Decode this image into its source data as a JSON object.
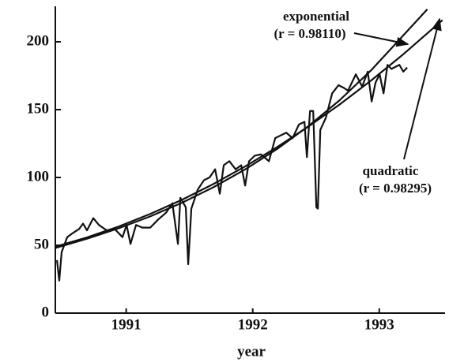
{
  "chart_data": {
    "type": "line",
    "xlabel": "year",
    "xlim": [
      1990.94,
      1994.02
    ],
    "ylim": [
      0,
      225
    ],
    "xticks": [
      {
        "value": 1991.5,
        "label": "1991"
      },
      {
        "value": 1992.5,
        "label": "1992"
      },
      {
        "value": 1993.5,
        "label": "1993"
      }
    ],
    "yticks": [
      0,
      50,
      100,
      150,
      200
    ],
    "color": "#111111",
    "series": [
      {
        "x": [
          1990.953,
          1990.971,
          1990.99,
          1991.034,
          1991.078,
          1991.128,
          1991.159,
          1991.19,
          1991.24,
          1991.284,
          1991.346,
          1991.409,
          1991.471,
          1991.503,
          1991.534,
          1991.578,
          1991.628,
          1991.69,
          1991.753,
          1991.815,
          1991.865,
          1991.909,
          1991.928,
          1991.971,
          1991.99,
          1992.015,
          1992.065,
          1992.115,
          1992.159,
          1992.203,
          1992.24,
          1992.271,
          1992.315,
          1992.365,
          1992.409,
          1992.44,
          1992.471,
          1992.515,
          1992.565,
          1992.628,
          1992.678,
          1992.721,
          1992.765,
          1992.815,
          1992.865,
          1992.909,
          1992.928,
          1992.953,
          1992.978,
          1993.003,
          1993.015,
          1993.034,
          1993.078,
          1993.128,
          1993.178,
          1993.221,
          1993.253,
          1993.315,
          1993.365,
          1993.409,
          1993.44,
          1993.471,
          1993.503,
          1993.534,
          1993.565,
          1993.596,
          1993.659,
          1993.69,
          1993.721
        ],
        "values": [
          39,
          24,
          45,
          56,
          59,
          62,
          66,
          61,
          70,
          65,
          61,
          62,
          56,
          65,
          51,
          65,
          63,
          63,
          69,
          74,
          81,
          51,
          85,
          78,
          36,
          77,
          91,
          98,
          100,
          106,
          88,
          109,
          112,
          106,
          109,
          94,
          112,
          116,
          117,
          112,
          129,
          131,
          133,
          129,
          139,
          141,
          115,
          149,
          149,
          78,
          77,
          135,
          144,
          162,
          168,
          166,
          164,
          176,
          167,
          178,
          156,
          170,
          176,
          162,
          183,
          180,
          183,
          178,
          181
        ]
      },
      {
        "x": [
          1990.94,
          1991.19,
          1991.44,
          1991.69,
          1991.94,
          1992.19,
          1992.44,
          1992.69,
          1992.94,
          1993.19,
          1993.44,
          1993.69,
          1993.88
        ],
        "values": [
          48,
          54.8,
          62.5,
          71.3,
          81.3,
          92.8,
          105.9,
          120.8,
          137.8,
          157.2,
          179.4,
          204.7,
          224.0
        ]
      },
      {
        "x": [
          1990.94,
          1991.19,
          1991.44,
          1991.69,
          1991.94,
          1992.19,
          1992.44,
          1992.69,
          1992.94,
          1993.19,
          1993.44,
          1993.69,
          1994.0
        ],
        "values": [
          49,
          55.8,
          63.8,
          73.1,
          83.5,
          95.2,
          108.1,
          122.2,
          137.5,
          154.0,
          171.8,
          190.8,
          216
        ]
      }
    ],
    "annotations": [
      "exponential",
      "(r = 0.98110)",
      "quadratic",
      "(r = 0.98295)"
    ]
  }
}
